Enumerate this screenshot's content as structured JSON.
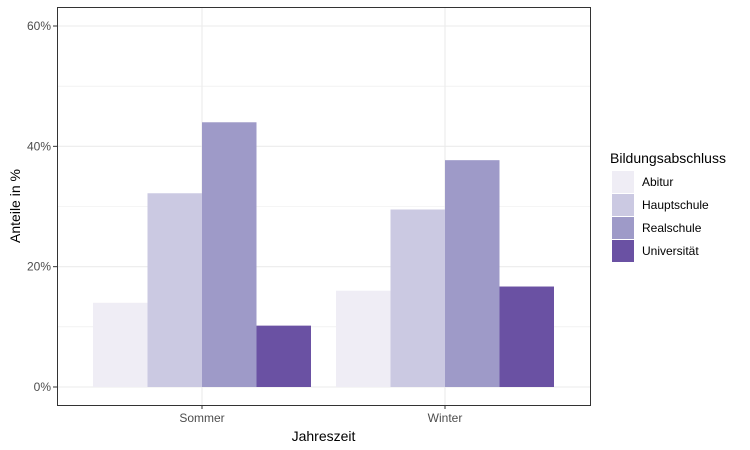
{
  "chart_data": {
    "type": "bar",
    "xlabel": "Jahreszeit",
    "ylabel": "Anteile in %",
    "categories": [
      "Sommer",
      "Winter"
    ],
    "ylim": [
      0,
      62
    ],
    "yticks": [
      0,
      20,
      40,
      60
    ],
    "ytick_labels": [
      "0%",
      "20%",
      "40%",
      "60%"
    ],
    "grid": true,
    "legend": {
      "title": "Bildungsabschluss",
      "position": "right"
    },
    "series": [
      {
        "name": "Abitur",
        "color": "#efedf5",
        "values": [
          14,
          16
        ]
      },
      {
        "name": "Hauptschule",
        "color": "#cbc9e2",
        "values": [
          32.2,
          29.5
        ]
      },
      {
        "name": "Realschule",
        "color": "#9e9ac8",
        "values": [
          44,
          37.7
        ]
      },
      {
        "name": "Universität",
        "color": "#6a51a3",
        "values": [
          10.2,
          16.7
        ]
      }
    ]
  }
}
